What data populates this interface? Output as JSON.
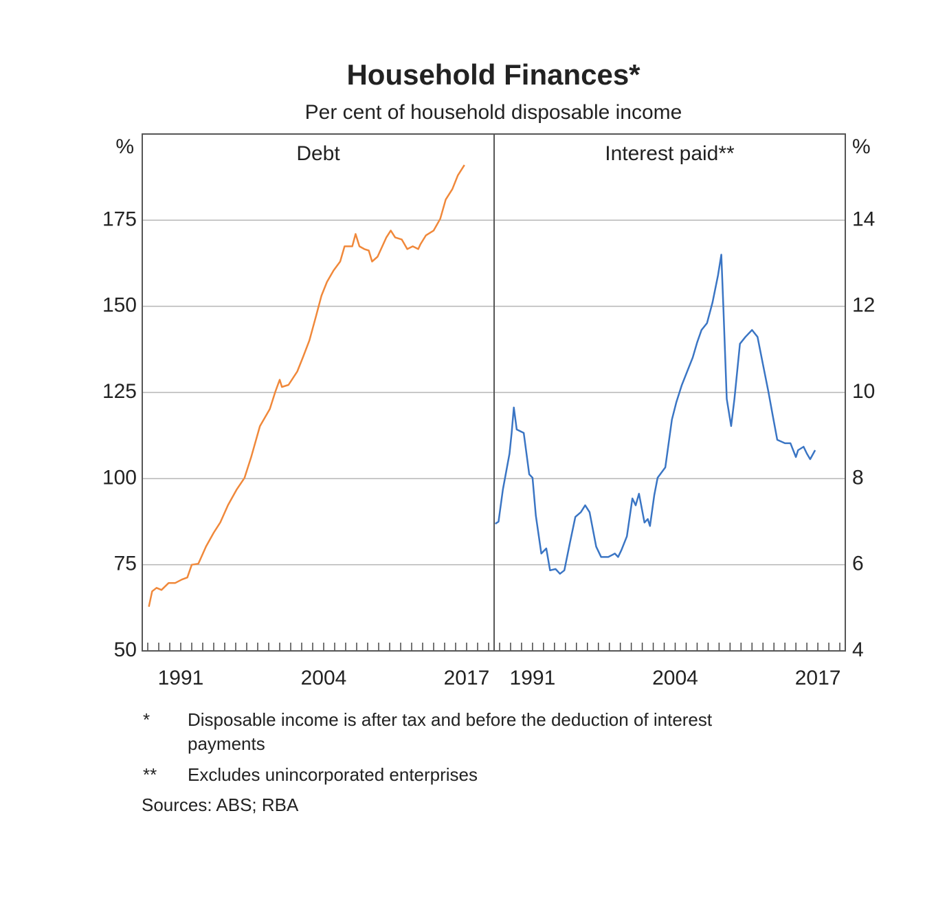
{
  "title": "Household Finances*",
  "subtitle": "Per cent of household disposable income",
  "notes": [
    {
      "marker": "*",
      "lines": [
        "Disposable income is after tax and before the deduction of interest",
        "payments"
      ]
    },
    {
      "marker": "**",
      "lines": [
        "Excludes unincorporated enterprises"
      ]
    }
  ],
  "sources": "Sources: ABS; RBA",
  "chart_data": [
    {
      "type": "line",
      "title": "Debt",
      "ylabel": "%",
      "yaxis_side": "left",
      "grid": true,
      "xlim": [
        1987.5,
        2019.5
      ],
      "xticks": [
        1991,
        2004,
        2017
      ],
      "minor_xticks": [
        1988,
        1989,
        1990,
        1991,
        1992,
        1993,
        1994,
        1995,
        1996,
        1997,
        1998,
        1999,
        2000,
        2001,
        2002,
        2003,
        2004,
        2005,
        2006,
        2007,
        2008,
        2009,
        2010,
        2011,
        2012,
        2013,
        2014,
        2015,
        2016,
        2017,
        2018,
        2019
      ],
      "ylim": [
        50,
        200
      ],
      "yticks": [
        50,
        75,
        100,
        125,
        150,
        175
      ],
      "x": [
        1988.1,
        1988.4,
        1988.8,
        1989.25,
        1989.9,
        1990.5,
        1991.1,
        1991.6,
        1992.0,
        1992.6,
        1993.3,
        1994.0,
        1994.6,
        1995.3,
        1996.1,
        1996.8,
        1997.4,
        1998.2,
        1999.1,
        1999.6,
        2000.0,
        2000.2,
        2000.8,
        2001.6,
        2002.1,
        2002.7,
        2003.3,
        2003.8,
        2004.3,
        2004.9,
        2005.5,
        2005.9,
        2006.6,
        2006.9,
        2007.25,
        2007.7,
        2008.1,
        2008.4,
        2008.9,
        2009.7,
        2010.1,
        2010.5,
        2011.1,
        2011.6,
        2012.1,
        2012.6,
        2012.8,
        2013.3,
        2014.0,
        2014.6,
        2015.1,
        2015.7,
        2016.2,
        2016.8
      ],
      "series": [
        {
          "color": "#f0883a",
          "values": [
            62.8,
            67.3,
            68.3,
            67.7,
            69.7,
            69.7,
            70.7,
            71.3,
            75,
            75.3,
            80.3,
            84.3,
            87.3,
            92.3,
            96.9,
            100.2,
            106.2,
            115.2,
            120.2,
            125.2,
            128.7,
            126.6,
            127.2,
            131.1,
            135.1,
            140.1,
            147.1,
            153.1,
            157.1,
            160.4,
            163,
            167.4,
            167.4,
            171,
            167.4,
            166.6,
            166.2,
            163,
            164.4,
            170,
            172,
            170,
            169.4,
            166.6,
            167.4,
            166.6,
            168,
            170.6,
            172,
            175.4,
            181,
            184,
            188,
            191
          ]
        }
      ]
    },
    {
      "type": "line",
      "title": "Interest paid**",
      "ylabel": "%",
      "yaxis_side": "right",
      "grid": true,
      "xlim": [
        1987.5,
        2019.5
      ],
      "xticks": [
        1991,
        2004,
        2017
      ],
      "minor_xticks": [
        1988,
        1989,
        1990,
        1991,
        1992,
        1993,
        1994,
        1995,
        1996,
        1997,
        1998,
        1999,
        2000,
        2001,
        2002,
        2003,
        2004,
        2005,
        2006,
        2007,
        2008,
        2009,
        2010,
        2011,
        2012,
        2013,
        2014,
        2015,
        2016,
        2017,
        2018,
        2019
      ],
      "ylim": [
        4,
        16
      ],
      "yticks": [
        4,
        6,
        8,
        10,
        12,
        14
      ],
      "x": [
        1987.6,
        1987.9,
        1988.3,
        1988.9,
        1989.1,
        1989.3,
        1989.56,
        1990.2,
        1990.7,
        1991.0,
        1991.3,
        1991.8,
        1992.25,
        1992.6,
        1993.1,
        1993.5,
        1993.9,
        1994.4,
        1994.9,
        1995.4,
        1995.8,
        1996.2,
        1996.8,
        1997.25,
        1997.9,
        1998.5,
        1998.8,
        1999.1,
        1999.6,
        2000.1,
        2000.4,
        2000.7,
        2001.2,
        2001.5,
        2001.7,
        2002.1,
        2002.4,
        2003.1,
        2003.7,
        2004.1,
        2004.6,
        2005.1,
        2005.6,
        2006.0,
        2006.4,
        2006.9,
        2007.4,
        2007.9,
        2008.2,
        2008.4,
        2008.7,
        2009.1,
        2009.4,
        2009.9,
        2010.4,
        2011.0,
        2011.5,
        2012.0,
        2012.5,
        2012.9,
        2013.3,
        2014.0,
        2014.5,
        2015.0,
        2015.2,
        2015.7,
        2016.0,
        2016.3,
        2016.75
      ],
      "series": [
        {
          "color": "#3a75c4",
          "values": [
            6.95,
            7.0,
            7.75,
            8.58,
            9.06,
            9.65,
            9.14,
            9.06,
            8.1,
            8.02,
            7.14,
            6.26,
            6.38,
            5.87,
            5.9,
            5.79,
            5.87,
            6.5,
            7.11,
            7.22,
            7.38,
            7.22,
            6.42,
            6.18,
            6.18,
            6.26,
            6.18,
            6.34,
            6.66,
            7.54,
            7.38,
            7.65,
            6.98,
            7.06,
            6.9,
            7.62,
            8.02,
            8.26,
            9.37,
            9.77,
            10.17,
            10.49,
            10.81,
            11.16,
            11.45,
            11.61,
            12.09,
            12.72,
            13.2,
            11.93,
            9.85,
            9.22,
            9.85,
            11.13,
            11.29,
            11.45,
            11.29,
            10.65,
            10.01,
            9.45,
            8.9,
            8.82,
            8.82,
            8.5,
            8.66,
            8.74,
            8.58,
            8.45,
            8.66
          ]
        }
      ]
    }
  ]
}
